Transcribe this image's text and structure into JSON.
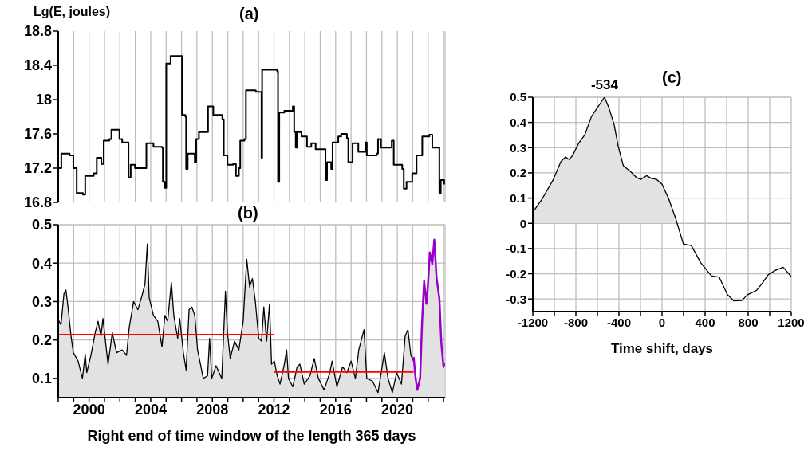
{
  "chart_data": [
    {
      "type": "step",
      "title": "(a)",
      "ylabel": "Lg(E, joules)",
      "color": "#000000",
      "x": [
        1998.0,
        1998.2,
        1998.74,
        1998.98,
        1999.2,
        1999.6,
        1999.75,
        2000.3,
        2000.5,
        2000.8,
        2000.95,
        2001.32,
        2001.45,
        2001.87,
        2001.97,
        2002.15,
        2002.48,
        2002.56,
        2002.7,
        2002.98,
        2003.63,
        2003.72,
        2004.18,
        2004.73,
        2004.79,
        2004.92,
        2005.01,
        2005.29,
        2005.99,
        2006.03,
        2006.25,
        2006.3,
        2006.4,
        2006.86,
        2006.95,
        2007.13,
        2007.6,
        2007.72,
        2008.06,
        2008.65,
        2008.74,
        2008.98,
        2009.35,
        2009.53,
        2009.72,
        2009.81,
        2010.08,
        2010.18,
        2010.73,
        2010.82,
        2011.1,
        2011.19,
        2011.23,
        2012.21,
        2012.26,
        2012.34,
        2012.67,
        2013.22,
        2013.31,
        2013.41,
        2013.5,
        2013.78,
        2014.14,
        2014.42,
        2014.7,
        2015.25,
        2015.34,
        2015.44,
        2015.71,
        2015.8,
        2016.17,
        2016.36,
        2016.73,
        2016.82,
        2017.1,
        2017.47,
        2017.93,
        2018.02,
        2018.66,
        2018.75,
        2018.94,
        2019.64,
        2019.77,
        2020.32,
        2020.42,
        2020.6,
        2020.97,
        2021.25,
        2021.52,
        2021.62,
        2022.08,
        2022.27,
        2022.64,
        2022.73,
        2022.82,
        2023.04
      ],
      "values": [
        17.2,
        17.37,
        17.35,
        17.2,
        16.91,
        16.89,
        17.11,
        17.14,
        17.32,
        17.25,
        17.52,
        17.54,
        17.65,
        17.65,
        17.54,
        17.5,
        17.5,
        17.09,
        17.24,
        17.2,
        17.2,
        17.49,
        17.45,
        17.44,
        17.04,
        16.97,
        18.42,
        18.51,
        18.51,
        17.82,
        17.8,
        17.19,
        17.37,
        17.27,
        17.54,
        17.62,
        17.62,
        17.92,
        17.82,
        17.77,
        17.35,
        17.24,
        17.25,
        17.11,
        17.2,
        17.52,
        17.54,
        18.11,
        18.11,
        18.09,
        18.09,
        17.32,
        18.35,
        18.33,
        17.04,
        17.85,
        17.87,
        17.92,
        17.62,
        17.44,
        17.62,
        17.57,
        17.45,
        17.49,
        17.42,
        17.42,
        17.06,
        17.27,
        17.19,
        17.5,
        17.57,
        17.6,
        17.55,
        17.27,
        17.49,
        17.39,
        17.5,
        17.35,
        17.37,
        17.54,
        17.44,
        17.52,
        17.24,
        17.19,
        16.96,
        17.04,
        17.14,
        17.35,
        17.35,
        17.57,
        17.59,
        17.44,
        17.44,
        16.91,
        17.06,
        17.01
      ],
      "xlim": [
        1998,
        2023.1
      ],
      "xticks": [
        {
          "value": 1998,
          "label": null
        },
        {
          "value": 1999,
          "label": null
        },
        2000,
        {
          "value": 2001,
          "label": null
        },
        {
          "value": 2002,
          "label": null
        },
        {
          "value": 2003,
          "label": null
        },
        2004,
        {
          "value": 2005,
          "label": null
        },
        {
          "value": 2006,
          "label": null
        },
        {
          "value": 2007,
          "label": null
        },
        2008,
        {
          "value": 2009,
          "label": null
        },
        {
          "value": 2010,
          "label": null
        },
        {
          "value": 2011,
          "label": null
        },
        2012,
        {
          "value": 2013,
          "label": null
        },
        {
          "value": 2014,
          "label": null
        },
        {
          "value": 2015,
          "label": null
        },
        2016,
        {
          "value": 2017,
          "label": null
        },
        {
          "value": 2018,
          "label": null
        },
        {
          "value": 2019,
          "label": null
        },
        2020,
        {
          "value": 2021,
          "label": null
        },
        {
          "value": 2022,
          "label": null
        },
        {
          "value": 2023,
          "label": null
        }
      ],
      "ylim": [
        16.8,
        18.8
      ],
      "yticks": [
        16.8,
        17.2,
        17.6,
        18,
        18.4,
        18.8
      ],
      "grid": "x",
      "tick_labels": "y"
    },
    {
      "type": "area",
      "title": "(b)",
      "xlabel": "Right end of time window of the length 365 days",
      "series": [
        {
          "color": "#000000",
          "x": [
            1998.0,
            1998.18,
            1998.37,
            1998.5,
            1998.65,
            1998.83,
            1998.98,
            1999.29,
            1999.57,
            1999.75,
            1999.85,
            2000.12,
            2000.4,
            2000.58,
            2000.77,
            2000.9,
            2001.23,
            2001.51,
            2001.78,
            2002.15,
            2002.43,
            2002.61,
            2002.89,
            2003.17,
            2003.44,
            2003.63,
            2003.78,
            2003.9,
            2004.18,
            2004.46,
            2004.73,
            2004.92,
            2005.1,
            2005.34,
            2005.5,
            2005.75,
            2005.88,
            2006.12,
            2006.3,
            2006.49,
            2006.67,
            2006.86,
            2007.04,
            2007.23,
            2007.41,
            2007.69,
            2007.82,
            2007.96,
            2008.24,
            2008.61,
            2008.85,
            2008.98,
            2009.16,
            2009.44,
            2009.72,
            2010.0,
            2010.23,
            2010.42,
            2010.6,
            2010.79,
            2011.01,
            2011.19,
            2011.34,
            2011.52,
            2011.71,
            2011.84,
            2012.02,
            2012.21,
            2012.39,
            2012.67,
            2012.82,
            2012.94,
            2013.22,
            2013.5,
            2013.68,
            2013.96,
            2014.33,
            2014.61,
            2014.88,
            2015.25,
            2015.62,
            2015.77,
            2016.08,
            2016.45,
            2016.73,
            2017.0,
            2017.28,
            2017.5,
            2017.84,
            2018.02,
            2018.39,
            2018.75,
            2019.16,
            2019.4,
            2019.68,
            2019.96,
            2020.27,
            2020.51,
            2020.69,
            2020.88,
            2021.06
          ],
          "values": [
            0.253,
            0.24,
            0.32,
            0.33,
            0.28,
            0.21,
            0.167,
            0.145,
            0.1,
            0.163,
            0.115,
            0.16,
            0.219,
            0.249,
            0.21,
            0.256,
            0.137,
            0.219,
            0.167,
            0.174,
            0.16,
            0.234,
            0.3,
            0.279,
            0.316,
            0.346,
            0.45,
            0.31,
            0.264,
            0.249,
            0.182,
            0.264,
            0.249,
            0.35,
            0.264,
            0.204,
            0.256,
            0.167,
            0.122,
            0.279,
            0.286,
            0.264,
            0.174,
            0.137,
            0.1,
            0.107,
            0.204,
            0.1,
            0.133,
            0.1,
            0.327,
            0.219,
            0.152,
            0.197,
            0.174,
            0.249,
            0.41,
            0.338,
            0.36,
            0.3,
            0.204,
            0.197,
            0.286,
            0.197,
            0.294,
            0.137,
            0.145,
            0.107,
            0.085,
            0.137,
            0.174,
            0.1,
            0.078,
            0.13,
            0.137,
            0.085,
            0.107,
            0.152,
            0.1,
            0.07,
            0.115,
            0.145,
            0.078,
            0.13,
            0.115,
            0.145,
            0.1,
            0.174,
            0.227,
            0.1,
            0.093,
            0.063,
            0.167,
            0.1,
            0.063,
            0.115,
            0.085,
            0.21,
            0.227,
            0.16,
            0.145
          ]
        },
        {
          "color": "#9900cc",
          "x": [
            2021.06,
            2021.19,
            2021.3,
            2021.48,
            2021.61,
            2021.74,
            2021.89,
            2021.98,
            2022.11,
            2022.27,
            2022.4,
            2022.55,
            2022.73,
            2022.86,
            2023.0,
            2023.07
          ],
          "values": [
            0.156,
            0.1,
            0.07,
            0.1,
            0.249,
            0.353,
            0.294,
            0.338,
            0.428,
            0.398,
            0.461,
            0.36,
            0.309,
            0.19,
            0.13,
            0.141
          ]
        },
        {
          "type": "line",
          "color": "#ff0000",
          "x": [
            1998,
            2012
          ],
          "values": [
            0.214,
            0.214
          ]
        },
        {
          "type": "line",
          "color": "#ff0000",
          "x": [
            2012,
            2021.06
          ],
          "values": [
            0.117,
            0.117
          ]
        }
      ],
      "xlim": [
        1998,
        2023.1
      ],
      "xticks": [
        {
          "value": 1998,
          "label": null
        },
        {
          "value": 1999,
          "label": null
        },
        2000,
        {
          "value": 2001,
          "label": null
        },
        {
          "value": 2002,
          "label": null
        },
        {
          "value": 2003,
          "label": null
        },
        2004,
        {
          "value": 2005,
          "label": null
        },
        {
          "value": 2006,
          "label": null
        },
        {
          "value": 2007,
          "label": null
        },
        2008,
        {
          "value": 2009,
          "label": null
        },
        {
          "value": 2010,
          "label": null
        },
        {
          "value": 2011,
          "label": null
        },
        2012,
        {
          "value": 2013,
          "label": null
        },
        {
          "value": 2014,
          "label": null
        },
        {
          "value": 2015,
          "label": null
        },
        2016,
        {
          "value": 2017,
          "label": null
        },
        {
          "value": 2018,
          "label": null
        },
        {
          "value": 2019,
          "label": null
        },
        2020,
        {
          "value": 2021,
          "label": null
        },
        {
          "value": 2022,
          "label": null
        },
        {
          "value": 2023,
          "label": null
        }
      ],
      "ylim": [
        0.05,
        0.5
      ],
      "yticks": [
        0.1,
        0.2,
        0.3,
        0.4,
        0.5
      ],
      "grid": true
    },
    {
      "type": "area",
      "title": "(c)",
      "xlabel": "Time shift, days",
      "color": "#000000",
      "x": [
        -1200,
        -1113,
        -1014,
        -940,
        -896,
        -861,
        -829,
        -774,
        -718,
        -656,
        -606,
        -534,
        -495,
        -445,
        -408,
        -359,
        -297,
        -235,
        -198,
        -144,
        -99,
        -50,
        0,
        62,
        124,
        198,
        272,
        359,
        458,
        532,
        606,
        668,
        742,
        791,
        878,
        927,
        989,
        1051,
        1125,
        1200
      ],
      "values": [
        0.044,
        0.097,
        0.17,
        0.244,
        0.263,
        0.253,
        0.27,
        0.318,
        0.35,
        0.423,
        0.455,
        0.5,
        0.46,
        0.392,
        0.307,
        0.228,
        0.207,
        0.181,
        0.174,
        0.189,
        0.178,
        0.174,
        0.155,
        0.097,
        0.023,
        -0.082,
        -0.088,
        -0.156,
        -0.208,
        -0.214,
        -0.282,
        -0.308,
        -0.306,
        -0.284,
        -0.266,
        -0.24,
        -0.203,
        -0.187,
        -0.174,
        -0.211
      ],
      "annotations": [
        {
          "text": "-534",
          "x": -534,
          "y": 0.5
        }
      ],
      "xlim": [
        -1200,
        1200
      ],
      "xticks": [
        -1200,
        {
          "value": -1000,
          "label": null
        },
        -800,
        {
          "value": -600,
          "label": null
        },
        -400,
        {
          "value": -200,
          "label": null
        },
        0,
        {
          "value": 200,
          "label": null
        },
        400,
        {
          "value": 600,
          "label": null
        },
        800,
        {
          "value": 1000,
          "label": null
        },
        1200
      ],
      "ylim": [
        -0.35,
        0.5
      ],
      "yticks": [
        -0.3,
        -0.2,
        -0.1,
        0,
        0.1,
        0.2,
        0.3,
        0.4,
        0.5
      ],
      "grid": true
    }
  ]
}
